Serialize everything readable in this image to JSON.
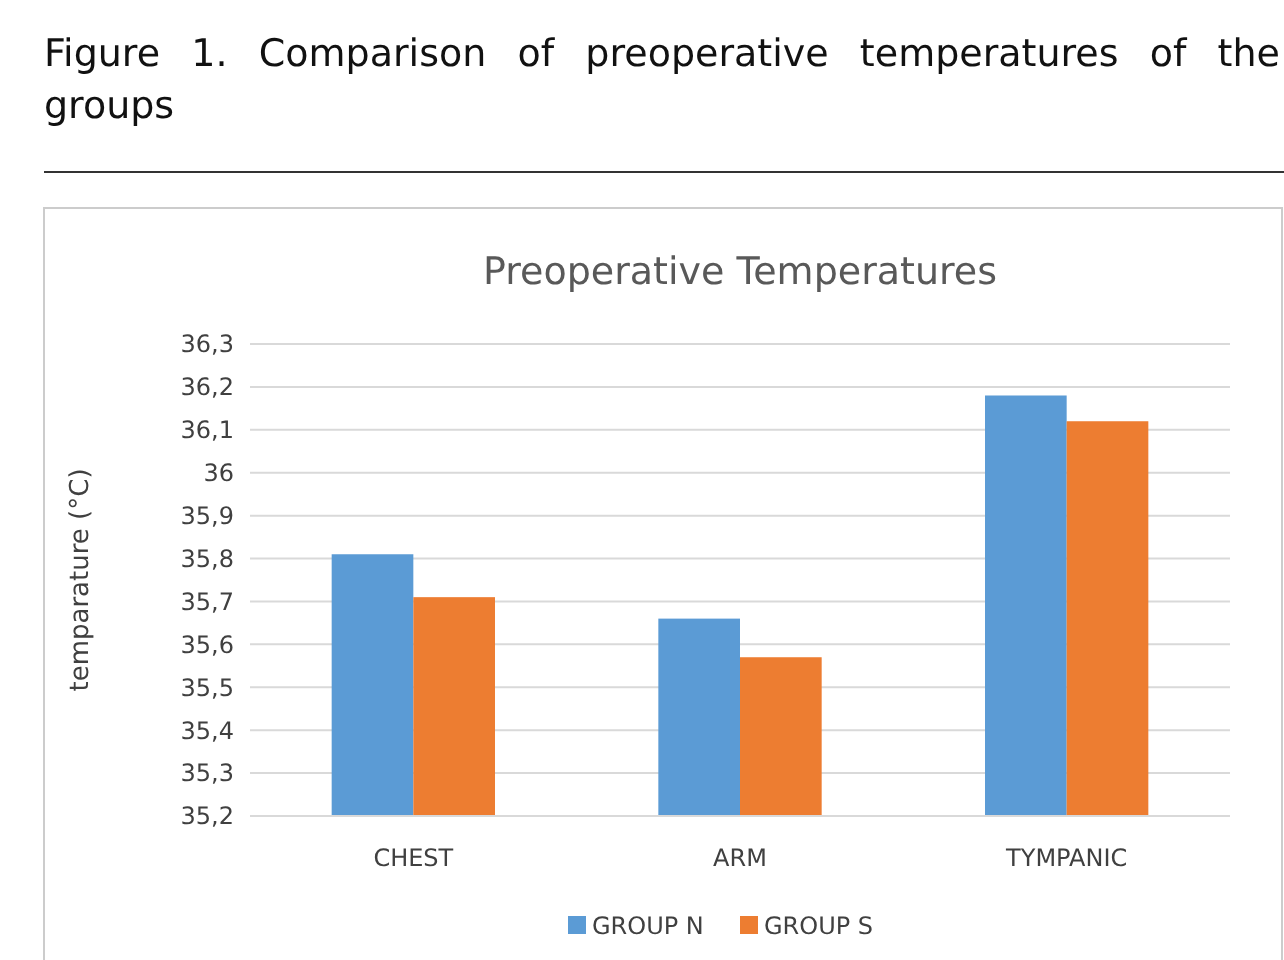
{
  "chart_data": {
    "type": "bar",
    "title": "Preoperative Temperatures",
    "annotations": [
      "Figure 1. Comparison of preoperative temperatures of the groups"
    ],
    "ylabel": "temparature (°C)",
    "categories": [
      "CHEST",
      "ARM",
      "TYMPANIC"
    ],
    "series": [
      {
        "name": "GROUP N",
        "color": "#5b9bd5",
        "values": [
          35.81,
          35.66,
          36.18
        ]
      },
      {
        "name": "GROUP S",
        "color": "#ed7d31",
        "values": [
          35.71,
          35.57,
          36.12
        ]
      }
    ],
    "ylim": [
      35.2,
      36.3
    ],
    "yticks": [
      {
        "value": 35.2,
        "label": "35,2"
      },
      {
        "value": 35.3,
        "label": "35,3"
      },
      {
        "value": 35.4,
        "label": "35,4"
      },
      {
        "value": 35.5,
        "label": "35,5"
      },
      {
        "value": 35.6,
        "label": "35,6"
      },
      {
        "value": 35.7,
        "label": "35,7"
      },
      {
        "value": 35.8,
        "label": "35,8"
      },
      {
        "value": 35.9,
        "label": "35,9"
      },
      {
        "value": 36,
        "label": "36"
      },
      {
        "value": 36.1,
        "label": "36,1"
      },
      {
        "value": 36.2,
        "label": "36,2"
      },
      {
        "value": 36.3,
        "label": "36,3"
      }
    ],
    "grid": "y",
    "legend": "bottom"
  }
}
